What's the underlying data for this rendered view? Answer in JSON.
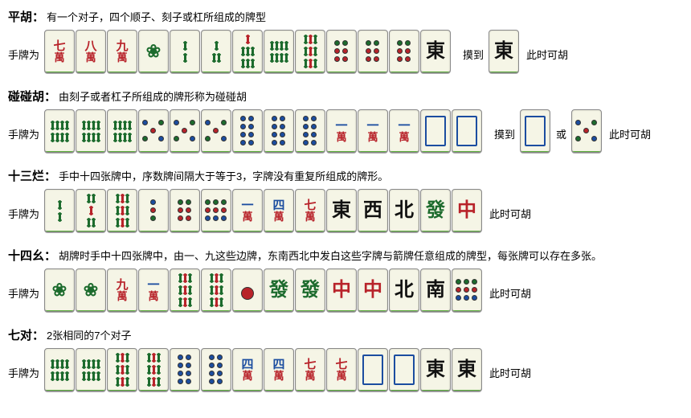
{
  "labels": {
    "hand": "手牌为",
    "draw": "摸到",
    "win": "此时可胡",
    "or": "或"
  },
  "colors": {
    "tile_face": "#f5f5e6",
    "tile_base": "#5aad3a",
    "red": "#b8232a",
    "green": "#1c6b2d",
    "blue": "#1b4da0",
    "black": "#111111",
    "background": "#ffffff"
  },
  "tile_size": {
    "w": 36,
    "h": 52
  },
  "sections": [
    {
      "title": "平胡",
      "desc": "有一个对子，四个顺子、刻子或杠所组成的牌型",
      "rows": [
        {
          "prefix": "hand",
          "groups": [
            {
              "tiles": [
                "w7",
                "w8",
                "w9",
                "b1",
                "b2",
                "b3",
                "b7",
                "b8",
                "b9",
                "d6",
                "d6",
                "d6",
                "E"
              ]
            },
            {
              "spacer": true
            },
            {
              "text": "draw"
            },
            {
              "tiles": [
                "E"
              ]
            }
          ],
          "suffix": "win"
        }
      ]
    },
    {
      "title": "碰碰胡",
      "desc": "由刻子或者杠子所组成的牌形称为碰碰胡",
      "rows": [
        {
          "prefix": "hand",
          "groups": [
            {
              "tiles": [
                "b8",
                "b8",
                "b8",
                "d5",
                "d5",
                "d5",
                "d8",
                "d8",
                "d8",
                "w1",
                "w1",
                "w1",
                "Bai",
                "Bai"
              ]
            },
            {
              "spacer": true
            },
            {
              "text": "draw"
            },
            {
              "tiles": [
                "Bai"
              ]
            },
            {
              "text": "or"
            },
            {
              "tiles": [
                "d5"
              ]
            }
          ],
          "suffix": "win"
        }
      ]
    },
    {
      "title": "十三烂",
      "desc": "手中十四张牌中，序数牌间隔大于等于3，字牌没有重复所组成的牌形。",
      "rows": [
        {
          "prefix": "hand",
          "groups": [
            {
              "tiles": [
                "b2",
                "b5",
                "b9",
                "d3",
                "d6",
                "d9",
                "w1",
                "w4",
                "w7",
                "E",
                "W",
                "N",
                "Fa",
                "Zh"
              ]
            }
          ],
          "suffix": "win"
        }
      ]
    },
    {
      "title": "十四幺",
      "desc": "胡牌时手中十四张牌中，由一、九这些边牌，东南西北中发白这些字牌与箭牌任意组成的牌型，每张牌可以存在多张。",
      "rows": [
        {
          "prefix": "hand",
          "groups": [
            {
              "tiles": [
                "b1",
                "b1",
                "w9",
                "w1",
                "b9",
                "b9",
                "d1",
                "Fa",
                "Fa",
                "Zh",
                "Zh",
                "N",
                "S",
                "d9"
              ]
            }
          ],
          "suffix": "win"
        }
      ]
    },
    {
      "title": "七对",
      "desc": "2张相同的7个对子",
      "rows": [
        {
          "prefix": "hand",
          "groups": [
            {
              "tiles": [
                "b8",
                "b8",
                "b9",
                "b9",
                "d8",
                "d8",
                "w4",
                "w4",
                "w7",
                "w7",
                "Bai",
                "Bai",
                "E",
                "E"
              ]
            }
          ],
          "suffix": "win"
        }
      ]
    }
  ],
  "tile_defs": {
    "w1": {
      "kind": "wan",
      "top": "一",
      "topClass": "blue"
    },
    "w4": {
      "kind": "wan",
      "top": "四",
      "topClass": "blue"
    },
    "w7": {
      "kind": "wan",
      "top": "七",
      "topClass": "red"
    },
    "w8": {
      "kind": "wan",
      "top": "八",
      "topClass": "red"
    },
    "w9": {
      "kind": "wan",
      "top": "九",
      "topClass": "red"
    },
    "b1": {
      "kind": "bird"
    },
    "b2": {
      "kind": "bam",
      "rows": [
        [
          "g"
        ],
        [
          "g"
        ]
      ]
    },
    "b3": {
      "kind": "bam",
      "rows": [
        [
          "g"
        ],
        [
          "g",
          "g"
        ]
      ]
    },
    "b5": {
      "kind": "bam",
      "rows": [
        [
          "g",
          "g"
        ],
        [
          "r"
        ],
        [
          "g",
          "g"
        ]
      ]
    },
    "b7": {
      "kind": "bam",
      "rows": [
        [
          "r"
        ],
        [
          "g",
          "g",
          "g"
        ],
        [
          "g",
          "g",
          "g"
        ]
      ]
    },
    "b8": {
      "kind": "bam",
      "rows": [
        [
          "g",
          "g",
          "g",
          "g"
        ],
        [
          "g",
          "g",
          "g",
          "g"
        ]
      ]
    },
    "b9": {
      "kind": "bam",
      "rows": [
        [
          "g",
          "r",
          "g"
        ],
        [
          "g",
          "r",
          "g"
        ],
        [
          "g",
          "r",
          "g"
        ]
      ]
    },
    "d1": {
      "kind": "dot",
      "dots": [
        {
          "c": "r",
          "big": true
        }
      ]
    },
    "d3": {
      "kind": "dot",
      "dots": [
        {
          "c": "b"
        },
        {
          "c": "r"
        },
        {
          "c": "g"
        }
      ],
      "cols": 1
    },
    "d5": {
      "kind": "dot",
      "dots": [
        {
          "c": "b"
        },
        {
          "c": "g"
        },
        {
          "c": "r"
        },
        {
          "c": "g"
        },
        {
          "c": "b"
        }
      ],
      "layout": "five"
    },
    "d6": {
      "kind": "dot",
      "dots": [
        {
          "c": "g"
        },
        {
          "c": "g"
        },
        {
          "c": "r"
        },
        {
          "c": "r"
        },
        {
          "c": "r"
        },
        {
          "c": "r"
        }
      ],
      "cols": 2
    },
    "d8": {
      "kind": "dot",
      "dots": [
        {
          "c": "b"
        },
        {
          "c": "b"
        },
        {
          "c": "b"
        },
        {
          "c": "b"
        },
        {
          "c": "b"
        },
        {
          "c": "b"
        },
        {
          "c": "b"
        },
        {
          "c": "b"
        }
      ],
      "cols": 2
    },
    "d9": {
      "kind": "dot",
      "dots": [
        {
          "c": "g"
        },
        {
          "c": "g"
        },
        {
          "c": "g"
        },
        {
          "c": "r"
        },
        {
          "c": "r"
        },
        {
          "c": "r"
        },
        {
          "c": "b"
        },
        {
          "c": "b"
        },
        {
          "c": "b"
        }
      ],
      "cols": 3
    },
    "E": {
      "kind": "honor",
      "char": "東",
      "cls": "black"
    },
    "S": {
      "kind": "honor",
      "char": "南",
      "cls": "black"
    },
    "W": {
      "kind": "honor",
      "char": "西",
      "cls": "black"
    },
    "N": {
      "kind": "honor",
      "char": "北",
      "cls": "black"
    },
    "Fa": {
      "kind": "honor",
      "char": "發",
      "cls": "green"
    },
    "Zh": {
      "kind": "honor",
      "char": "中",
      "cls": "red"
    },
    "Bai": {
      "kind": "bai"
    }
  }
}
